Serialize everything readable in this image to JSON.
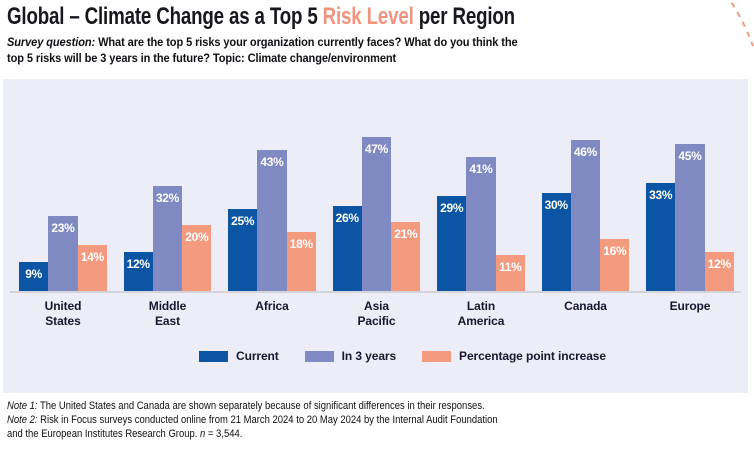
{
  "header": {
    "title_pre": "Global – Climate Change as a Top 5 ",
    "title_accent": "Risk Level",
    "title_post": " per Region",
    "subtitle_prefix": "Survey question:",
    "subtitle_line1": " What are the top 5 risks your organization currently faces? What do you think the",
    "subtitle_line2": "top 5 risks will be 3 years in the future? Topic: Climate change/environment"
  },
  "chart_data": {
    "type": "bar",
    "categories": [
      "United States",
      "Middle East",
      "Africa",
      "Asia Pacific",
      "Latin America",
      "Canada",
      "Europe"
    ],
    "category_lines": [
      [
        "United",
        "States"
      ],
      [
        "Middle",
        "East"
      ],
      [
        "Africa"
      ],
      [
        "Asia",
        "Pacific"
      ],
      [
        "Latin",
        "America"
      ],
      [
        "Canada"
      ],
      [
        "Europe"
      ]
    ],
    "series": [
      {
        "name": "Current",
        "color": "#0b55a4",
        "values": [
          9,
          12,
          25,
          26,
          29,
          30,
          33
        ]
      },
      {
        "name": "In 3 years",
        "color": "#7f8ac3",
        "values": [
          23,
          32,
          43,
          47,
          41,
          46,
          45
        ]
      },
      {
        "name": "Percentage point increase",
        "color": "#f39a7f",
        "values": [
          14,
          20,
          18,
          21,
          11,
          16,
          12
        ]
      }
    ],
    "value_suffix": "%",
    "data_labels": true,
    "ylim": [
      0,
      65
    ],
    "grid": false,
    "legend_position": "bottom"
  },
  "notes": {
    "note1_prefix": "Note 1:",
    "note1_text": " The United States and Canada are shown separately because of significant differences in their responses.",
    "note2_prefix": "Note 2:",
    "note2_text": " Risk in Focus surveys conducted online from 21 March 2024 to 20 May 2024 by the Internal Audit Foundation",
    "note3_pre": "and the European Institutes Research Group. ",
    "note3_italic": "n",
    "note3_post": " = 3,544."
  },
  "colors": {
    "title_accent": "#f2937e",
    "current": "#0b55a4",
    "in_3_years": "#7f8ac3",
    "increase": "#f39a7f",
    "panel_background": "#ecedf6",
    "axis_line": "#d3d3db",
    "label_text": "#17182f",
    "deco_arc": "#f4a18b"
  }
}
